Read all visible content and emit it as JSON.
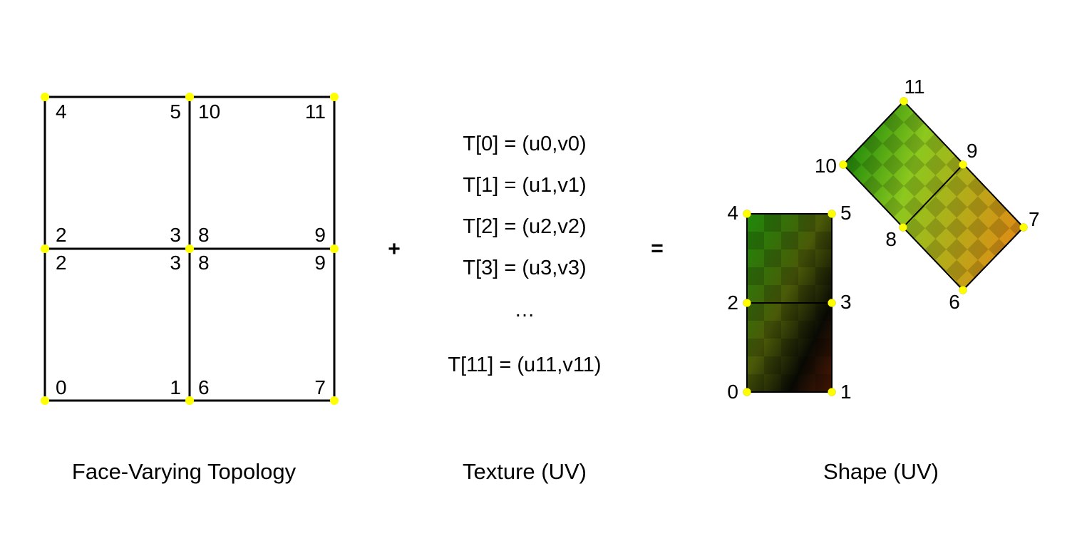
{
  "colors": {
    "vertex": "#ffff00",
    "edge": "#000000",
    "checker_dark": "#000000"
  },
  "topology": {
    "caption": "Face-Varying Topology",
    "faces": [
      {
        "id": "top-left",
        "labels": [
          "4",
          "5",
          "2",
          "3"
        ]
      },
      {
        "id": "top-right",
        "labels": [
          "10",
          "11",
          "8",
          "9"
        ]
      },
      {
        "id": "bottom-left",
        "labels": [
          "2",
          "3",
          "0",
          "1"
        ]
      },
      {
        "id": "bottom-right",
        "labels": [
          "8",
          "9",
          "6",
          "7"
        ]
      }
    ]
  },
  "operators": {
    "plus": "+",
    "equals": "="
  },
  "texture": {
    "caption": "Texture (UV)",
    "entries": [
      "T[0] = (u0,v0)",
      "T[1] = (u1,v1)",
      "T[2] = (u2,v2)",
      "T[3] = (u3,v3)",
      "…",
      "T[11] = (u11,v11)"
    ]
  },
  "shape": {
    "caption": "Shape (UV)",
    "vertex_labels": [
      "0",
      "1",
      "2",
      "3",
      "4",
      "5",
      "6",
      "7",
      "8",
      "9",
      "10",
      "11"
    ],
    "corner_colors": {
      "green": "#1e8a0a",
      "yellow_green": "#8cc81e",
      "orange": "#e08c14",
      "dark_red": "#4c1804",
      "black": "#0a0a04",
      "dark_olive": "#4a5a08"
    }
  }
}
